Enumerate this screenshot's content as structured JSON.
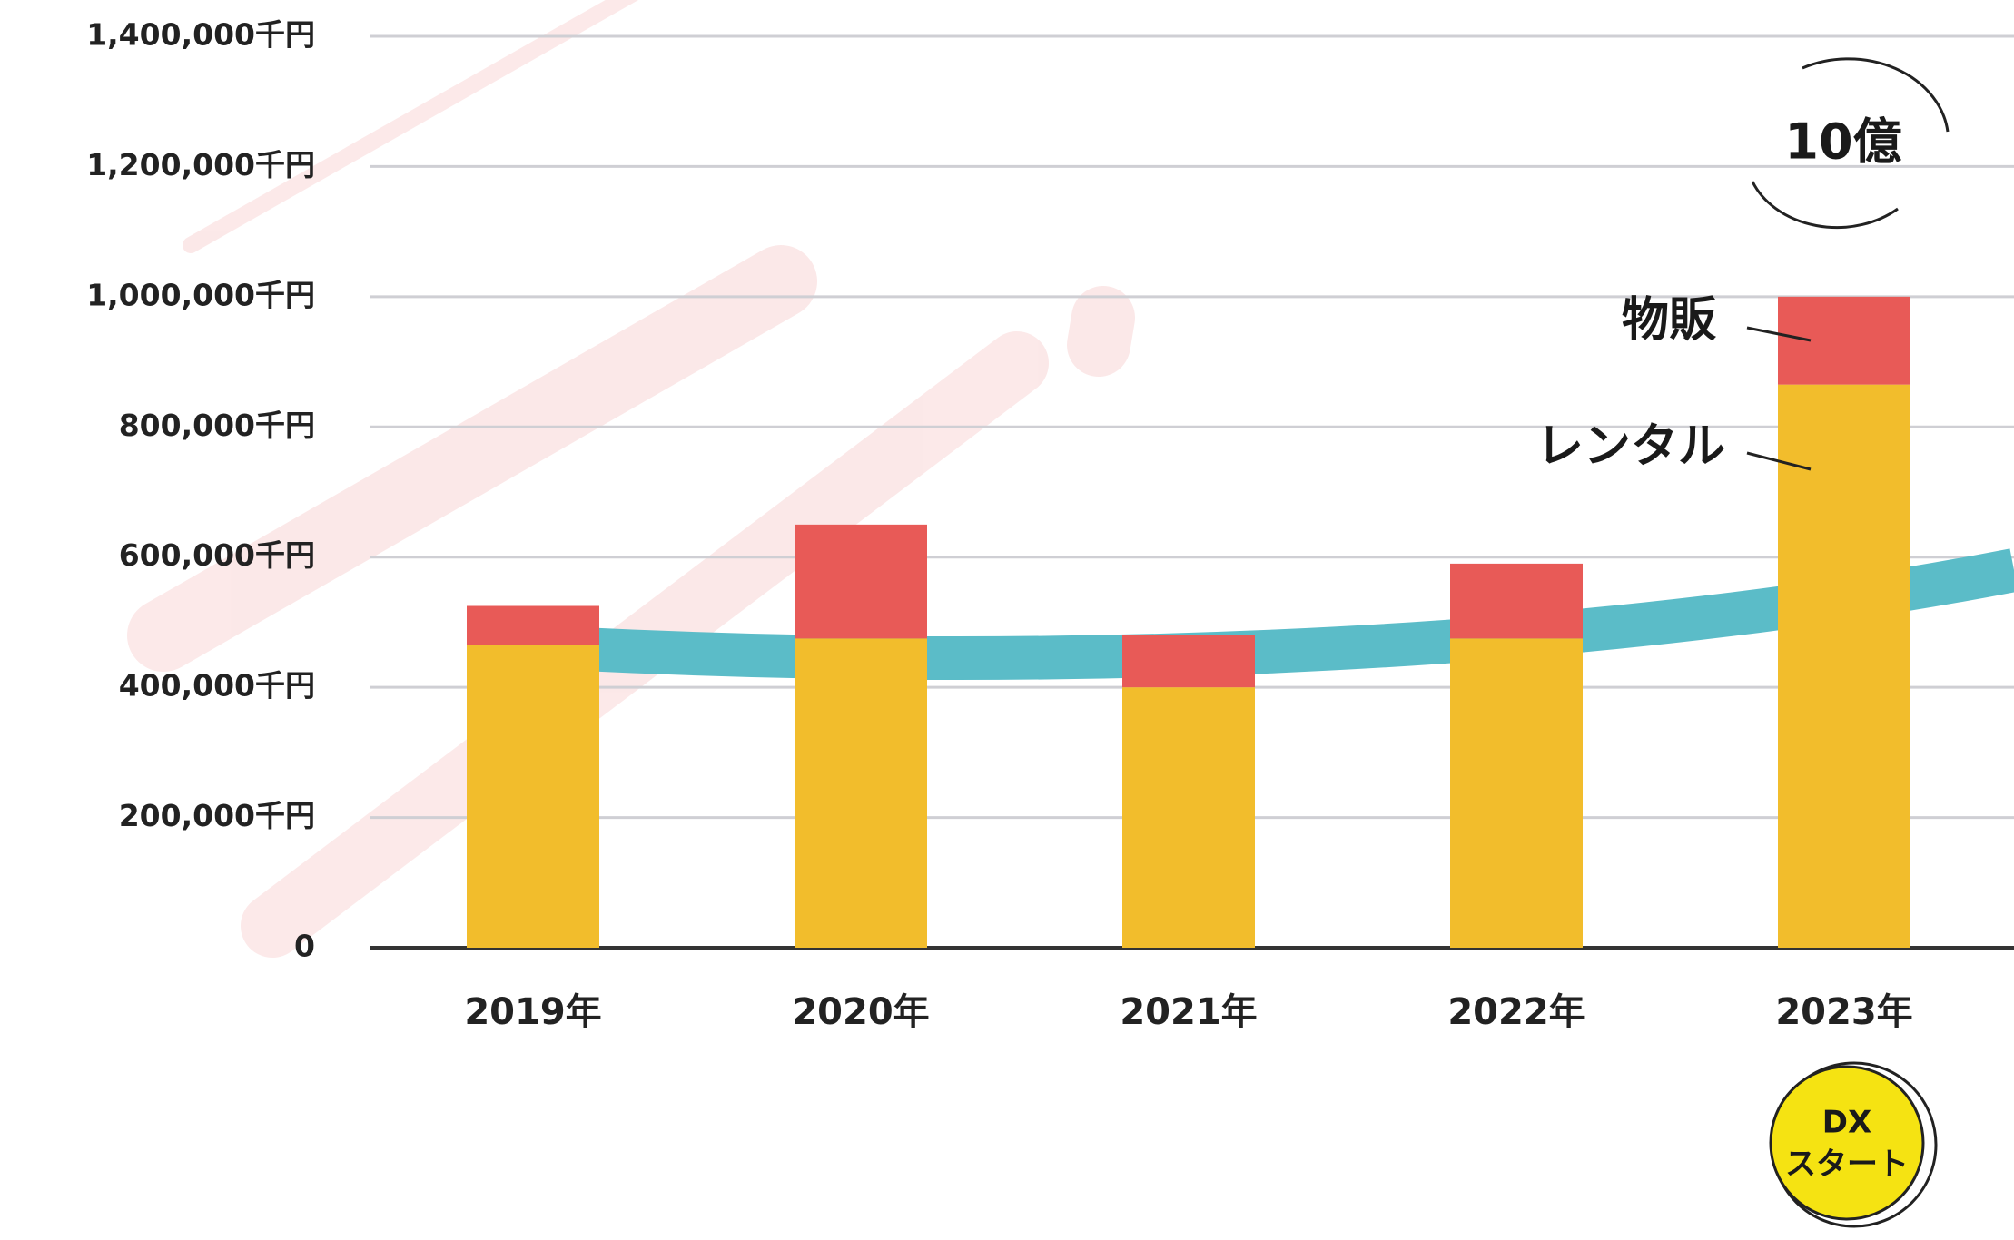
{
  "chart_data": {
    "type": "stacked-bar",
    "categories": [
      "2019年",
      "2020年",
      "2021年",
      "2022年",
      "2023年"
    ],
    "series": [
      {
        "name": "レンタル",
        "color": "#f2bd2c",
        "values": [
          465000,
          475000,
          400000,
          475000,
          865000
        ]
      },
      {
        "name": "物販",
        "color": "#e85a57",
        "values": [
          60000,
          175000,
          80000,
          115000,
          135000
        ]
      }
    ],
    "ylim": [
      0,
      1400000
    ],
    "yticks": [
      0,
      {
        "value": 200000,
        "label": "200,000千円"
      },
      {
        "value": 400000,
        "label": "400,000千円"
      },
      {
        "value": 600000,
        "label": "600,000千円"
      },
      {
        "value": 800000,
        "label": "800,000千円"
      },
      {
        "value": 1000000,
        "label": "1,000,000千円"
      },
      {
        "value": 1200000,
        "label": "1,200,000千円"
      },
      {
        "value": 1400000,
        "label": "1,400,000千円"
      }
    ],
    "grid": true,
    "annotations": [
      "10億",
      "DX",
      "スタート"
    ]
  }
}
